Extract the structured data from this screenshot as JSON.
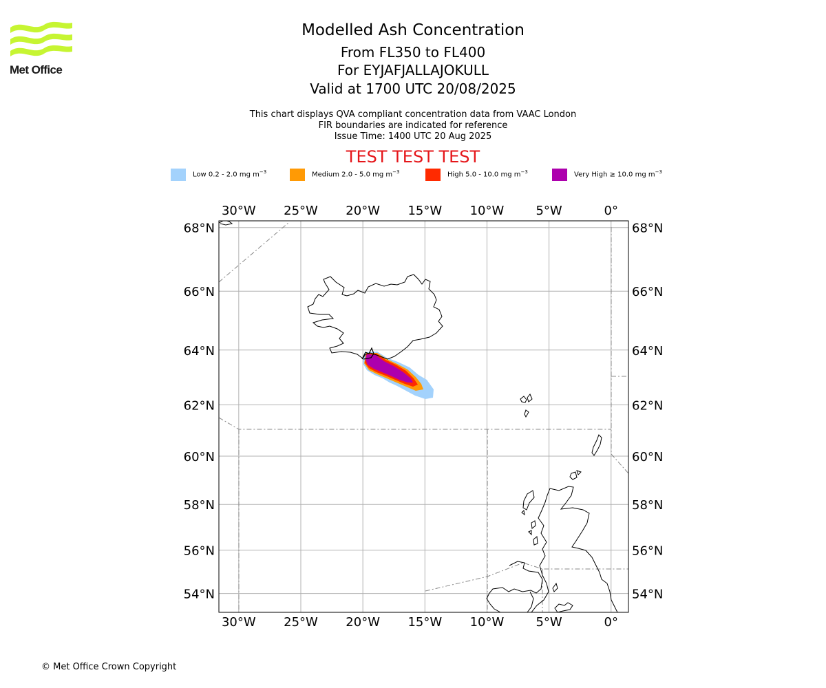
{
  "header": {
    "title": "Modelled Ash Concentration",
    "subtitle_levels": "From FL350 to FL400",
    "subtitle_volcano": "For EYJAFJALLAJOKULL",
    "subtitle_valid": "Valid at 1700 UTC 20/08/2025",
    "info_line1": "This chart displays QVA compliant concentration data from VAAC London",
    "info_line2": "FIR boundaries are indicated for reference",
    "info_line3": "Issue Time: 1400 UTC 20 Aug 2025",
    "test_banner": "TEST TEST TEST"
  },
  "logo": {
    "text": "Met Office",
    "color": "#c6f532"
  },
  "legend": [
    {
      "label": "Low 0.2 - 2.0 mg m",
      "unit_exp": "−3",
      "color": "#a3d2fc"
    },
    {
      "label": "Medium 2.0 - 5.0 mg m",
      "unit_exp": "−3",
      "color": "#ff9a05"
    },
    {
      "label": "High 5.0 - 10.0 mg m",
      "unit_exp": "−3",
      "color": "#ff2a00"
    },
    {
      "label": "Very High  ≥  10.0 mg m",
      "unit_exp": "−3",
      "color": "#ad00ad"
    }
  ],
  "map": {
    "lon_range": [
      -31.6,
      1.4
    ],
    "lat_range": [
      53.1,
      68.2
    ],
    "lon_ticks": [
      {
        "value": -30,
        "label": "30°W"
      },
      {
        "value": -25,
        "label": "25°W"
      },
      {
        "value": -20,
        "label": "20°W"
      },
      {
        "value": -15,
        "label": "15°W"
      },
      {
        "value": -10,
        "label": "10°W"
      },
      {
        "value": -5,
        "label": "5°W"
      },
      {
        "value": 0,
        "label": "0°"
      }
    ],
    "lat_ticks": [
      {
        "value": 68,
        "label": "68°N"
      },
      {
        "value": 66,
        "label": "66°N"
      },
      {
        "value": 64,
        "label": "64°N"
      },
      {
        "value": 62,
        "label": "62°N"
      },
      {
        "value": 60,
        "label": "60°N"
      },
      {
        "value": 58,
        "label": "58°N"
      },
      {
        "value": 56,
        "label": "56°N"
      },
      {
        "value": 54,
        "label": "54°N"
      }
    ]
  },
  "footer": {
    "copyright": "© Met Office Crown Copyright"
  }
}
